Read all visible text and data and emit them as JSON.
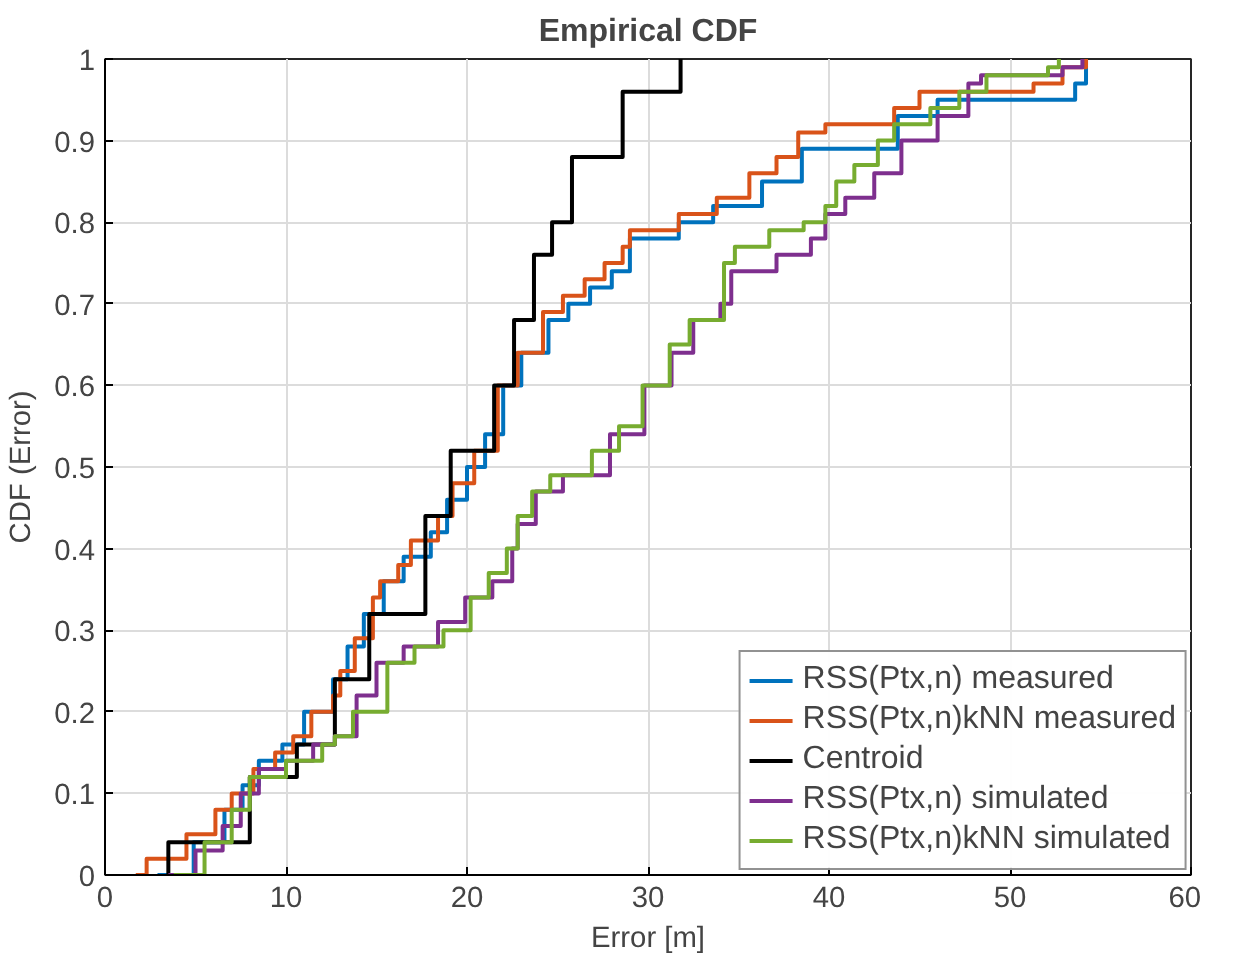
{
  "chart_data": {
    "type": "step",
    "title": "Empirical CDF",
    "xlabel": "Error [m]",
    "ylabel": "CDF (Error)",
    "xlim": [
      0,
      60
    ],
    "xticks": [
      0,
      10,
      20,
      30,
      40,
      50,
      60
    ],
    "ylim": [
      0,
      1
    ],
    "yticks": [
      0,
      0.1,
      0.2,
      0.3,
      0.4,
      0.5,
      0.6,
      0.7,
      0.8,
      0.9,
      1
    ],
    "grid": true,
    "legend": "bottom right",
    "line_style": "solid",
    "series": [
      {
        "name": "RSS(Ptx,n) measured",
        "color": "#0072bd",
        "x": [
          2.9,
          4.9,
          6.6,
          7.6,
          8.5,
          9.8,
          11.0,
          12.6,
          13.4,
          14.3,
          15.4,
          16.5,
          18.0,
          18.9,
          20.0,
          21.0,
          22.0,
          23.0,
          24.5,
          25.6,
          26.8,
          28.0,
          29.0,
          31.7,
          33.6,
          36.3,
          38.5,
          43.8,
          46.0,
          52.5,
          53.6,
          54.2
        ],
        "values": [
          0,
          0.04,
          0.08,
          0.11,
          0.14,
          0.16,
          0.2,
          0.24,
          0.28,
          0.32,
          0.36,
          0.39,
          0.42,
          0.46,
          0.5,
          0.54,
          0.6,
          0.64,
          0.68,
          0.7,
          0.72,
          0.74,
          0.78,
          0.8,
          0.82,
          0.85,
          0.89,
          0.93,
          0.95,
          0.95,
          0.97,
          1.0
        ]
      },
      {
        "name": "RSS(Ptx,n)kNN measured",
        "color": "#d95319",
        "x": [
          1.7,
          2.3,
          4.5,
          6.1,
          7.0,
          8.2,
          9.4,
          10.4,
          11.4,
          12.6,
          13.0,
          13.8,
          14.8,
          15.2,
          16.2,
          16.9,
          18.4,
          19.2,
          20.4,
          21.7,
          22.8,
          24.2,
          25.3,
          26.5,
          27.6,
          28.6,
          29.0,
          31.7,
          33.8,
          35.6,
          37.1,
          38.3,
          39.8,
          43.6,
          45.0,
          51.3,
          52.9,
          54.2
        ],
        "values": [
          0,
          0.02,
          0.05,
          0.08,
          0.1,
          0.13,
          0.15,
          0.17,
          0.2,
          0.22,
          0.25,
          0.29,
          0.34,
          0.36,
          0.38,
          0.41,
          0.44,
          0.48,
          0.52,
          0.6,
          0.64,
          0.69,
          0.71,
          0.73,
          0.75,
          0.77,
          0.79,
          0.81,
          0.83,
          0.86,
          0.88,
          0.91,
          0.92,
          0.94,
          0.96,
          0.97,
          0.99,
          1.0
        ]
      },
      {
        "name": "Centroid",
        "color": "#000000",
        "x": [
          3.5,
          3.5,
          8.0,
          10.6,
          12.7,
          14.6,
          17.7,
          19.1,
          21.5,
          22.6,
          23.7,
          24.7,
          25.8,
          28.6,
          31.8
        ],
        "values": [
          0,
          0.04,
          0.12,
          0.16,
          0.24,
          0.32,
          0.44,
          0.52,
          0.6,
          0.68,
          0.76,
          0.8,
          0.88,
          0.96,
          1.0
        ]
      },
      {
        "name": "RSS(Ptx,n) simulated",
        "color": "#7e2f8e",
        "x": [
          3.5,
          5.0,
          6.5,
          7.5,
          8.5,
          10.0,
          11.5,
          12.7,
          13.9,
          15.0,
          16.5,
          18.4,
          19.9,
          21.4,
          22.5,
          22.8,
          23.8,
          25.3,
          27.9,
          29.8,
          31.3,
          32.5,
          34.0,
          34.6,
          37.1,
          39.0,
          39.8,
          40.9,
          42.5,
          44.0,
          46.0,
          47.7,
          48.4,
          52.9,
          54.0
        ],
        "values": [
          0,
          0.03,
          0.06,
          0.1,
          0.13,
          0.14,
          0.16,
          0.17,
          0.22,
          0.26,
          0.28,
          0.31,
          0.34,
          0.36,
          0.4,
          0.43,
          0.47,
          0.49,
          0.54,
          0.6,
          0.64,
          0.68,
          0.7,
          0.74,
          0.76,
          0.78,
          0.81,
          0.83,
          0.86,
          0.9,
          0.93,
          0.97,
          0.98,
          0.99,
          1.0
        ]
      },
      {
        "name": "RSS(Ptx,n)kNN simulated",
        "color": "#77ac30",
        "x": [
          3.8,
          5.5,
          7.0,
          8.0,
          10.0,
          12.0,
          12.7,
          13.7,
          15.6,
          17.1,
          18.7,
          20.2,
          21.2,
          22.2,
          22.8,
          23.6,
          24.6,
          26.9,
          28.4,
          29.7,
          31.2,
          32.3,
          34.2,
          34.8,
          36.7,
          38.6,
          39.8,
          40.4,
          41.4,
          42.7,
          43.6,
          45.6,
          47.2,
          48.7,
          52.1,
          52.7
        ],
        "values": [
          0,
          0.04,
          0.08,
          0.12,
          0.14,
          0.16,
          0.17,
          0.2,
          0.26,
          0.28,
          0.3,
          0.34,
          0.37,
          0.4,
          0.44,
          0.47,
          0.49,
          0.52,
          0.55,
          0.6,
          0.65,
          0.68,
          0.75,
          0.77,
          0.79,
          0.8,
          0.82,
          0.85,
          0.87,
          0.9,
          0.92,
          0.94,
          0.96,
          0.98,
          0.99,
          1.0
        ]
      }
    ]
  }
}
